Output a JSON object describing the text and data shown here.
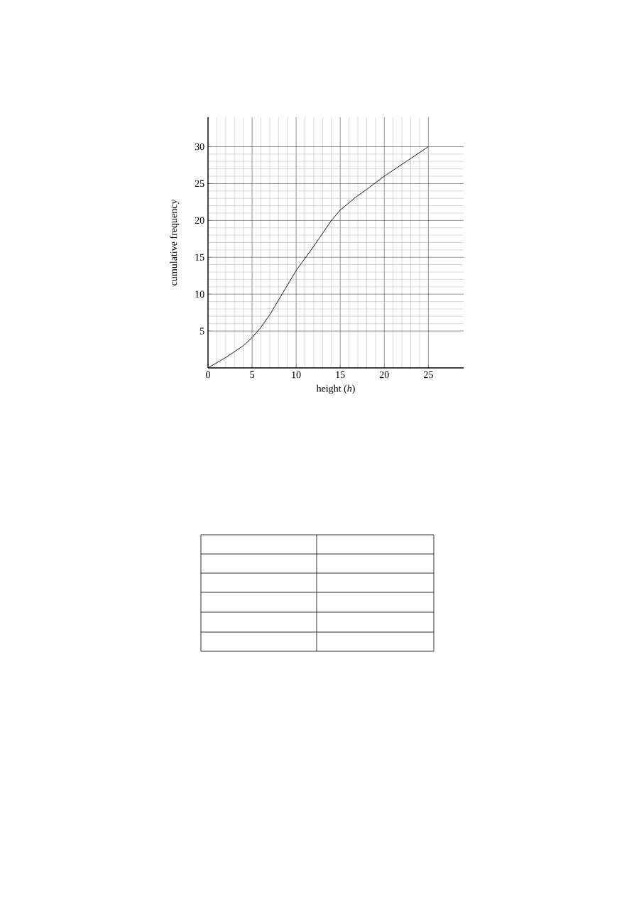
{
  "chart_data": {
    "type": "line",
    "xlabel": "height (*h*)",
    "ylabel": "cumulative frequency",
    "x": [
      0,
      2,
      4,
      5,
      6,
      7,
      8,
      9,
      10,
      12,
      14,
      15,
      16.7,
      18,
      20,
      22.5,
      25
    ],
    "values": [
      0,
      1.4,
      3,
      4.1,
      5.5,
      7.2,
      9.2,
      11.2,
      13.2,
      16.5,
      20,
      21.4,
      23.1,
      24.2,
      26,
      28,
      30
    ],
    "color": "#000000",
    "marker": "none",
    "line_style": "solid",
    "xlim": [
      0,
      29
    ],
    "ylim": [
      0,
      34
    ],
    "xticks": [
      0,
      5,
      10,
      15,
      20,
      25
    ],
    "yticks": [
      5,
      10,
      15,
      20,
      25,
      30
    ],
    "grid": true
  }
}
